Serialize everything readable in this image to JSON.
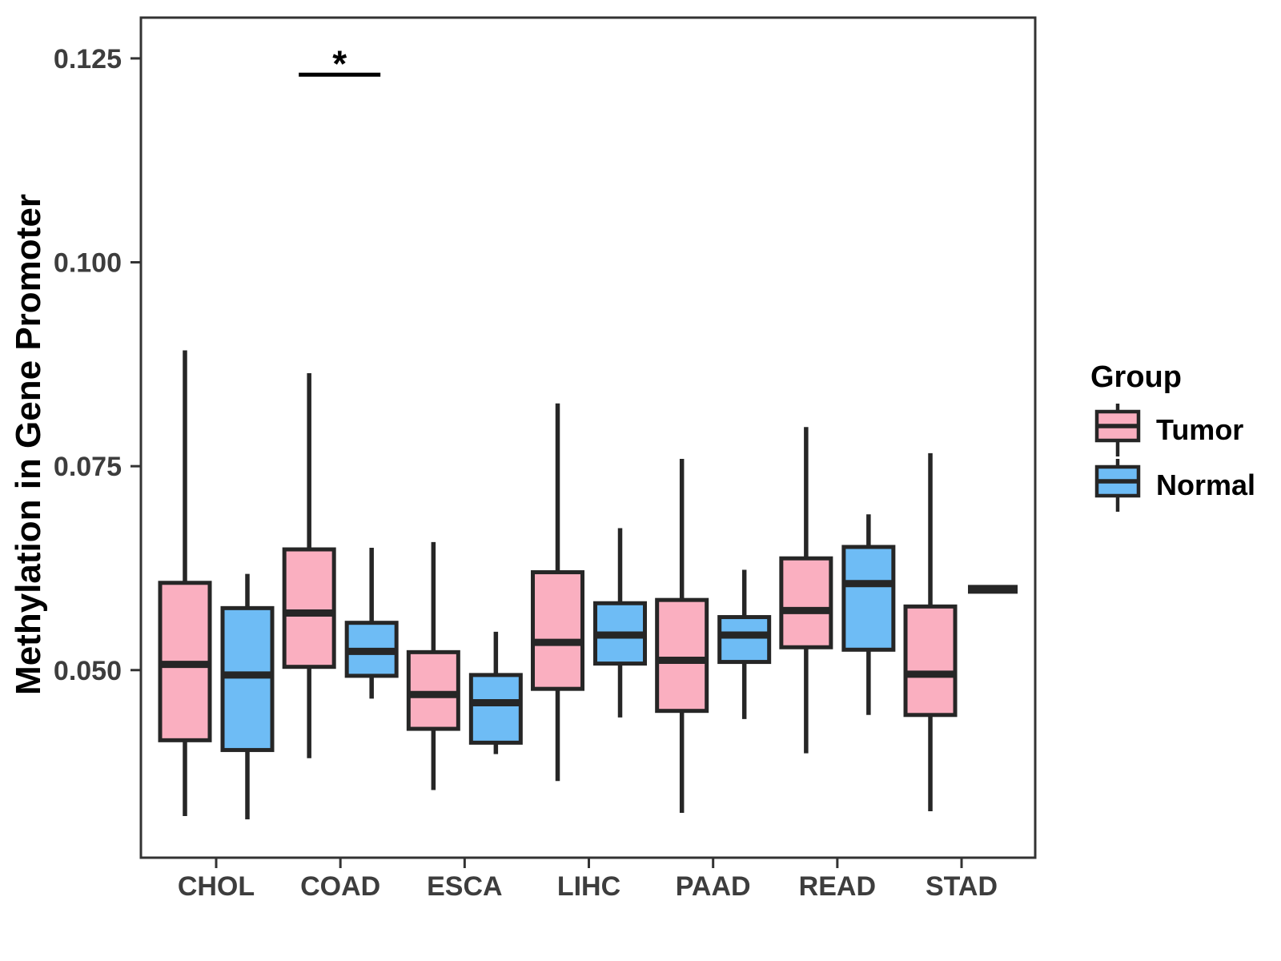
{
  "chart_data": {
    "type": "boxplot",
    "title": "",
    "xlabel": "",
    "ylabel": "Methylation in Gene Promoter",
    "categories": [
      "CHOL",
      "COAD",
      "ESCA",
      "LIHC",
      "PAAD",
      "READ",
      "STAD"
    ],
    "ylim": [
      0.027,
      0.13
    ],
    "yticks": [
      {
        "value": 0.05,
        "label": "0.050"
      },
      {
        "value": 0.075,
        "label": "0.075"
      },
      {
        "value": 0.1,
        "label": "0.100"
      },
      {
        "value": 0.125,
        "label": "0.125"
      }
    ],
    "grid": "off",
    "series": [
      {
        "name": "Tumor",
        "color": "#FAAFC0",
        "values": [
          {
            "category": "CHOL",
            "min": 0.0321,
            "q1": 0.0414,
            "median": 0.0507,
            "q3": 0.0607,
            "max": 0.0892
          },
          {
            "category": "COAD",
            "min": 0.0392,
            "q1": 0.0504,
            "median": 0.057,
            "q3": 0.0648,
            "max": 0.0864
          },
          {
            "category": "ESCA",
            "min": 0.0353,
            "q1": 0.0428,
            "median": 0.047,
            "q3": 0.0522,
            "max": 0.0657
          },
          {
            "category": "LIHC",
            "min": 0.0364,
            "q1": 0.0477,
            "median": 0.0534,
            "q3": 0.062,
            "max": 0.0827
          },
          {
            "category": "PAAD",
            "min": 0.0325,
            "q1": 0.045,
            "median": 0.0512,
            "q3": 0.0586,
            "max": 0.0759
          },
          {
            "category": "READ",
            "min": 0.0398,
            "q1": 0.0528,
            "median": 0.0573,
            "q3": 0.0637,
            "max": 0.0798
          },
          {
            "category": "STAD",
            "min": 0.0327,
            "q1": 0.0445,
            "median": 0.0495,
            "q3": 0.0578,
            "max": 0.0766
          }
        ]
      },
      {
        "name": "Normal",
        "color": "#6EBCF5",
        "values": [
          {
            "category": "CHOL",
            "min": 0.0317,
            "q1": 0.0402,
            "median": 0.0494,
            "q3": 0.0576,
            "max": 0.0618
          },
          {
            "category": "COAD",
            "min": 0.0465,
            "q1": 0.0493,
            "median": 0.0523,
            "q3": 0.0558,
            "max": 0.065
          },
          {
            "category": "ESCA",
            "min": 0.0397,
            "q1": 0.0411,
            "median": 0.046,
            "q3": 0.0494,
            "max": 0.0547
          },
          {
            "category": "LIHC",
            "min": 0.0442,
            "q1": 0.0508,
            "median": 0.0543,
            "q3": 0.0582,
            "max": 0.0674
          },
          {
            "category": "PAAD",
            "min": 0.044,
            "q1": 0.051,
            "median": 0.0543,
            "q3": 0.0565,
            "max": 0.0623
          },
          {
            "category": "READ",
            "min": 0.0445,
            "q1": 0.0525,
            "median": 0.0606,
            "q3": 0.0651,
            "max": 0.0691
          },
          {
            "category": "STAD",
            "min": 0.0599,
            "q1": 0.0599,
            "median": 0.0599,
            "q3": 0.0599,
            "max": 0.0599
          }
        ]
      }
    ],
    "annotations": [
      {
        "type": "significance",
        "category": "COAD",
        "label": "*",
        "bar_value": 0.123
      }
    ],
    "legend": {
      "title": "Group",
      "position": "right",
      "entries": [
        "Tumor",
        "Normal"
      ]
    },
    "colors": {
      "box_border": "#262626",
      "median_line": "#262626",
      "whisker": "#262626",
      "panel_border": "#333333",
      "axis_tick": "#333333",
      "axis_text": "#3D3D3D",
      "annotation": "#000000"
    }
  }
}
